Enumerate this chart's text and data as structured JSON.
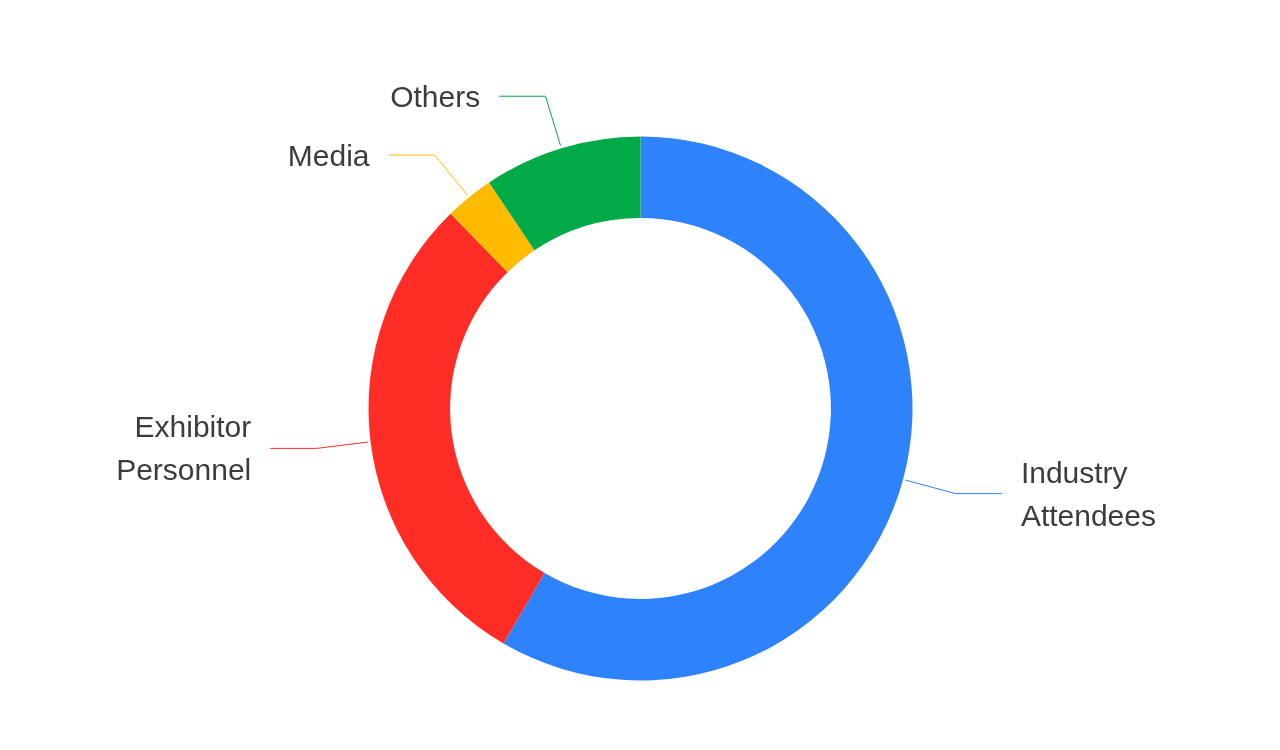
{
  "chart_data": {
    "type": "donut",
    "categories": [
      "Industry Attendees",
      "Exhibitor Personnel",
      "Media",
      "Others"
    ],
    "values": [
      58.4,
      29.3,
      2.9,
      9.4
    ],
    "colors": [
      "#2e82fc",
      "#ff2d26",
      "#ffbb00",
      "#00aa47"
    ]
  }
}
